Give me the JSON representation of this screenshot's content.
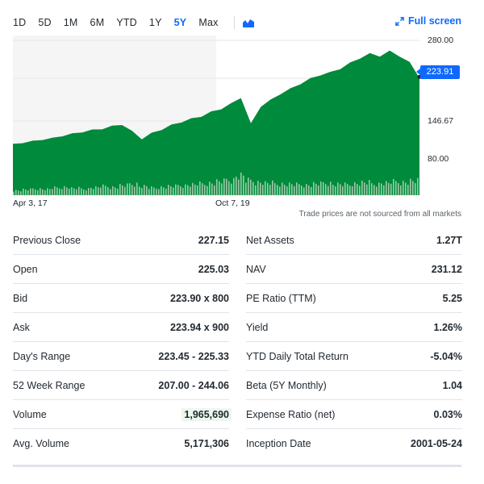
{
  "ranges": [
    "1D",
    "5D",
    "1M",
    "6M",
    "YTD",
    "1Y",
    "5Y",
    "Max"
  ],
  "active_range": "5Y",
  "chart_type_icon": "area-chart-icon",
  "fullscreen_label": "Full screen",
  "current_price": "223.91",
  "accent_color": "#0f69ff",
  "chart_color": "#008a3b",
  "disclaimer": "Trade prices are not sourced from all markets",
  "chart_data": {
    "type": "area",
    "y_ticks": [
      "280.00",
      "146.67",
      "80.00"
    ],
    "x_ticks": [
      "Apr 3, 17",
      "Oct 7, 19"
    ],
    "ylim": [
      35,
      290
    ],
    "series": [
      {
        "values": [
          117,
          120,
          122,
          125,
          127,
          131,
          134,
          137,
          140,
          142,
          146,
          149,
          138,
          126,
          135,
          141,
          148,
          153,
          158,
          162,
          169,
          174,
          182,
          192,
          150,
          178,
          188,
          198,
          206,
          214,
          222,
          228,
          232,
          238,
          247,
          255,
          262,
          258,
          266,
          258,
          248,
          223.91
        ]
      }
    ],
    "volume": [
      12,
      14,
      16,
      15,
      18,
      20,
      17,
      16,
      19,
      22,
      20,
      24,
      28,
      22,
      18,
      20,
      22,
      24,
      26,
      28,
      30,
      34,
      38,
      48,
      36,
      32,
      30,
      28,
      27,
      26,
      25,
      28,
      30,
      27,
      26,
      29,
      31,
      28,
      30,
      33,
      32,
      35
    ]
  },
  "stats_left": [
    {
      "label": "Previous Close",
      "value": "227.15"
    },
    {
      "label": "Open",
      "value": "225.03"
    },
    {
      "label": "Bid",
      "value": "223.90 x 800"
    },
    {
      "label": "Ask",
      "value": "223.94 x 900"
    },
    {
      "label": "Day's Range",
      "value": "223.45 - 225.33"
    },
    {
      "label": "52 Week Range",
      "value": "207.00 - 244.06"
    },
    {
      "label": "Volume",
      "value": "1,965,690"
    },
    {
      "label": "Avg. Volume",
      "value": "5,171,306"
    }
  ],
  "stats_right": [
    {
      "label": "Net Assets",
      "value": "1.27T"
    },
    {
      "label": "NAV",
      "value": "231.12"
    },
    {
      "label": "PE Ratio (TTM)",
      "value": "5.25"
    },
    {
      "label": "Yield",
      "value": "1.26%"
    },
    {
      "label": "YTD Daily Total Return",
      "value": "-5.04%"
    },
    {
      "label": "Beta (5Y Monthly)",
      "value": "1.04"
    },
    {
      "label": "Expense Ratio (net)",
      "value": "0.03%"
    },
    {
      "label": "Inception Date",
      "value": "2001-05-24"
    }
  ]
}
